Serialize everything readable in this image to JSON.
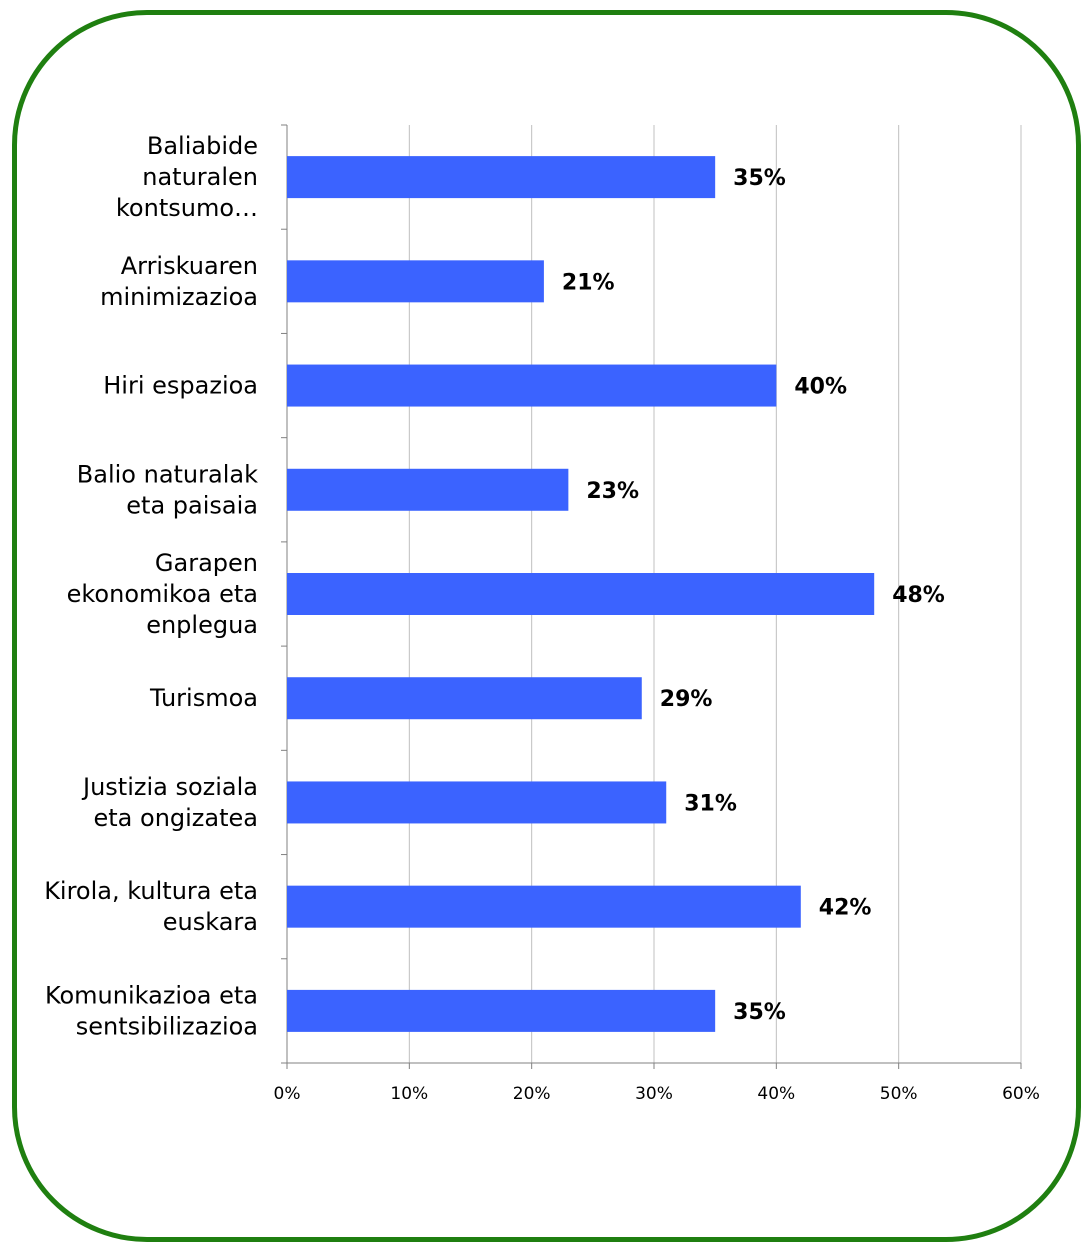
{
  "chart_data": {
    "type": "bar",
    "orientation": "horizontal",
    "categories": [
      [
        "Baliabide",
        "naturalen",
        "kontsumo…"
      ],
      [
        "Arriskuaren",
        "minimizazioa"
      ],
      [
        "Hiri espazioa"
      ],
      [
        "Balio naturalak",
        "eta paisaia"
      ],
      [
        "Garapen",
        "ekonomikoa eta",
        "enplegua"
      ],
      [
        "Turismoa"
      ],
      [
        "Justizia soziala",
        "eta ongizatea"
      ],
      [
        "Kirola, kultura eta",
        "euskara"
      ],
      [
        "Komunikazioa eta",
        "sentsibilizazioa"
      ]
    ],
    "values": [
      35,
      21,
      40,
      23,
      48,
      29,
      31,
      42,
      35
    ],
    "value_labels": [
      "35%",
      "21%",
      "40%",
      "23%",
      "48%",
      "29%",
      "31%",
      "42%",
      "35%"
    ],
    "xlim": [
      0,
      60
    ],
    "x_ticks": [
      0,
      10,
      20,
      30,
      40,
      50,
      60
    ],
    "x_tick_labels": [
      "0%",
      "10%",
      "20%",
      "30%",
      "40%",
      "50%",
      "60%"
    ],
    "grid": true,
    "bar_color": "#3b63ff",
    "grid_color": "#c0c0c0",
    "frame_color": "#1f7f10",
    "title": "",
    "xlabel": "",
    "ylabel": ""
  }
}
